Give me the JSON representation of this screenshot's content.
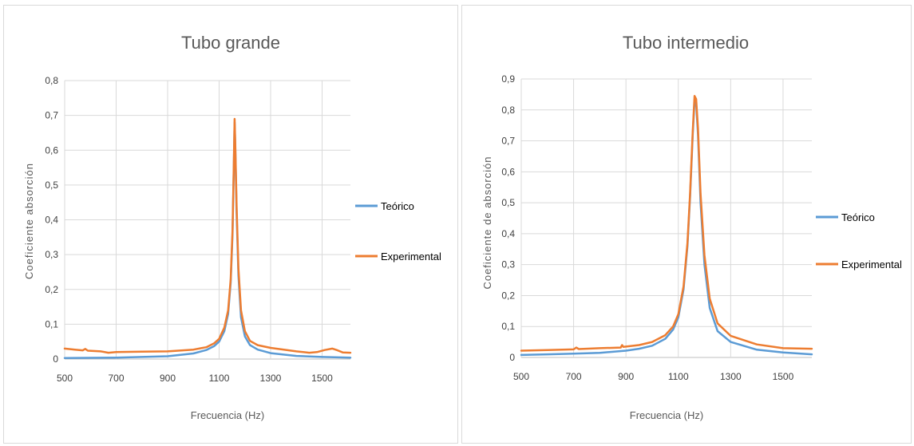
{
  "colors": {
    "teorico": "#5B9BD5",
    "experimental": "#ED7D31",
    "grid": "#d9d9d9",
    "text": "#595959"
  },
  "chart_data": [
    {
      "type": "line",
      "title": "Tubo grande",
      "xlabel": "Frecuencia (Hz)",
      "ylabel": "Coeficiente absorción",
      "xlim": [
        500,
        1610
      ],
      "ylim": [
        0,
        0.8
      ],
      "x_ticks": [
        500,
        700,
        900,
        1100,
        1300,
        1500
      ],
      "x_tick_labels": [
        "500",
        "700",
        "900",
        "1100",
        "1300",
        "1500"
      ],
      "y_ticks": [
        0,
        0.1,
        0.2,
        0.3,
        0.4,
        0.5,
        0.6,
        0.7,
        0.8
      ],
      "y_tick_labels": [
        "0",
        "0,1",
        "0,2",
        "0,3",
        "0,4",
        "0,5",
        "0,6",
        "0,7",
        "0,8"
      ],
      "grid": "vertical-and-horizontal",
      "legend_position": "right",
      "series": [
        {
          "name": "Teórico",
          "color": "#5B9BD5",
          "x": [
            500,
            700,
            900,
            1000,
            1050,
            1080,
            1100,
            1120,
            1135,
            1145,
            1152,
            1157,
            1160,
            1163,
            1168,
            1175,
            1185,
            1200,
            1220,
            1250,
            1300,
            1400,
            1500,
            1610
          ],
          "y": [
            0.003,
            0.004,
            0.008,
            0.016,
            0.026,
            0.037,
            0.05,
            0.08,
            0.13,
            0.22,
            0.36,
            0.55,
            0.68,
            0.6,
            0.42,
            0.24,
            0.12,
            0.065,
            0.04,
            0.027,
            0.017,
            0.009,
            0.006,
            0.004
          ]
        },
        {
          "name": "Experimental",
          "color": "#ED7D31",
          "x": [
            500,
            540,
            570,
            580,
            590,
            640,
            670,
            700,
            800,
            900,
            1000,
            1050,
            1080,
            1100,
            1120,
            1135,
            1145,
            1152,
            1157,
            1160,
            1163,
            1168,
            1175,
            1185,
            1200,
            1220,
            1250,
            1300,
            1400,
            1450,
            1480,
            1510,
            1540,
            1560,
            1580,
            1610
          ],
          "y": [
            0.03,
            0.027,
            0.025,
            0.029,
            0.024,
            0.022,
            0.018,
            0.02,
            0.021,
            0.022,
            0.027,
            0.034,
            0.045,
            0.058,
            0.09,
            0.14,
            0.23,
            0.37,
            0.56,
            0.69,
            0.61,
            0.44,
            0.26,
            0.14,
            0.08,
            0.052,
            0.04,
            0.032,
            0.022,
            0.018,
            0.02,
            0.026,
            0.03,
            0.025,
            0.019,
            0.018
          ]
        }
      ]
    },
    {
      "type": "line",
      "title": "Tubo intermedio",
      "xlabel": "Frecuencia (Hz)",
      "ylabel": "Coeficiente de absorción",
      "xlim": [
        500,
        1610
      ],
      "ylim": [
        0,
        0.9
      ],
      "x_ticks": [
        500,
        700,
        900,
        1100,
        1300,
        1500
      ],
      "x_tick_labels": [
        "500",
        "700",
        "900",
        "1100",
        "1300",
        "1500"
      ],
      "y_ticks": [
        0,
        0.1,
        0.2,
        0.3,
        0.4,
        0.5,
        0.6,
        0.7,
        0.8,
        0.9
      ],
      "y_tick_labels": [
        "0",
        "0,1",
        "0,2",
        "0,3",
        "0,4",
        "0,5",
        "0,6",
        "0,7",
        "0,8",
        "0,9"
      ],
      "grid": "vertical-and-horizontal",
      "legend_position": "right",
      "series": [
        {
          "name": "Teórico",
          "color": "#5B9BD5",
          "x": [
            500,
            600,
            700,
            800,
            900,
            950,
            1000,
            1050,
            1080,
            1100,
            1120,
            1135,
            1145,
            1155,
            1162,
            1168,
            1175,
            1185,
            1200,
            1220,
            1250,
            1300,
            1400,
            1500,
            1610
          ],
          "y": [
            0.008,
            0.01,
            0.012,
            0.015,
            0.022,
            0.028,
            0.038,
            0.06,
            0.09,
            0.13,
            0.22,
            0.36,
            0.52,
            0.72,
            0.83,
            0.82,
            0.72,
            0.5,
            0.3,
            0.16,
            0.085,
            0.05,
            0.025,
            0.016,
            0.01
          ]
        },
        {
          "name": "Experimental",
          "color": "#ED7D31",
          "x": [
            500,
            600,
            700,
            710,
            720,
            800,
            880,
            885,
            890,
            900,
            950,
            1000,
            1050,
            1080,
            1100,
            1120,
            1135,
            1145,
            1155,
            1162,
            1168,
            1175,
            1185,
            1200,
            1220,
            1250,
            1300,
            1400,
            1500,
            1610
          ],
          "y": [
            0.022,
            0.024,
            0.026,
            0.032,
            0.027,
            0.03,
            0.032,
            0.04,
            0.034,
            0.035,
            0.04,
            0.05,
            0.072,
            0.1,
            0.14,
            0.23,
            0.37,
            0.53,
            0.73,
            0.845,
            0.835,
            0.74,
            0.53,
            0.33,
            0.19,
            0.11,
            0.07,
            0.042,
            0.03,
            0.028
          ]
        }
      ]
    }
  ]
}
